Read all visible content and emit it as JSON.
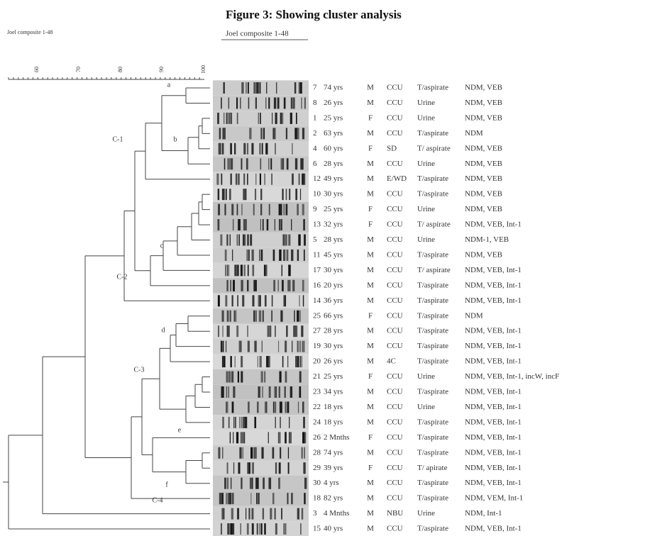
{
  "title": "Figure 3: Showing cluster analysis",
  "left_label": "Joel composite 1-48",
  "composite_label": "Joel composite 1-48",
  "scale": {
    "ticks": [
      "60",
      "70",
      "80",
      "90",
      "100"
    ]
  },
  "clusters": [
    "a",
    "b",
    "c",
    "d",
    "e",
    "f",
    "C-1",
    "C-2",
    "C-3",
    "C-4"
  ],
  "rows": [
    {
      "id": "7",
      "age": "74 yrs",
      "sex": "M",
      "ward": "CCU",
      "sample": "T/aspirate",
      "genes": "NDM, VEB"
    },
    {
      "id": "8",
      "age": "26 yrs",
      "sex": "M",
      "ward": "CCU",
      "sample": "Urine",
      "genes": "NDM, VEB"
    },
    {
      "id": "1",
      "age": "25 yrs",
      "sex": "F",
      "ward": "CCU",
      "sample": "Urine",
      "genes": "NDM, VEB"
    },
    {
      "id": "2",
      "age": "63 yrs",
      "sex": "M",
      "ward": "CCU",
      "sample": "T/aspirate",
      "genes": "NDM"
    },
    {
      "id": "4",
      "age": "60 yrs",
      "sex": "F",
      "ward": "SD",
      "sample": "T/ aspirate",
      "genes": "NDM, VEB"
    },
    {
      "id": "6",
      "age": "28 yrs",
      "sex": "M",
      "ward": "CCU",
      "sample": "Urine",
      "genes": "NDM, VEB"
    },
    {
      "id": "12",
      "age": "49 yrs",
      "sex": "M",
      "ward": "E/WD",
      "sample": "T/aspirate",
      "genes": "NDM, VEB"
    },
    {
      "id": "10",
      "age": "30 yrs",
      "sex": "M",
      "ward": "CCU",
      "sample": "T/aspirate",
      "genes": "NDM, VEB"
    },
    {
      "id": "9",
      "age": "25 yrs",
      "sex": "F",
      "ward": "CCU",
      "sample": "Urine",
      "genes": "NDM, VEB"
    },
    {
      "id": "13",
      "age": "32 yrs",
      "sex": "F",
      "ward": "CCU",
      "sample": "T/ aspirate",
      "genes": "NDM, VEB, Int-1"
    },
    {
      "id": "5",
      "age": "28 yrs",
      "sex": "M",
      "ward": "CCU",
      "sample": "Urine",
      "genes": "NDM-1, VEB"
    },
    {
      "id": "11",
      "age": "45 yrs",
      "sex": "M",
      "ward": "CCU",
      "sample": "T/aspirate",
      "genes": "NDM, VEB"
    },
    {
      "id": "17",
      "age": "30 yrs",
      "sex": "M",
      "ward": "CCU",
      "sample": "T/ aspirate",
      "genes": "NDM, VEB, Int-1"
    },
    {
      "id": "16",
      "age": "20 yrs",
      "sex": "M",
      "ward": "CCU",
      "sample": "T/aspirate",
      "genes": "NDM, VEB, Int-1"
    },
    {
      "id": "14",
      "age": "36 yrs",
      "sex": "M",
      "ward": "CCU",
      "sample": "T/aspirate",
      "genes": "NDM, VEB, Int-1"
    },
    {
      "id": "25",
      "age": "66 yrs",
      "sex": "F",
      "ward": "CCU",
      "sample": "T/aspirate",
      "genes": "NDM"
    },
    {
      "id": "27",
      "age": "28 yrs",
      "sex": "M",
      "ward": "CCU",
      "sample": "T/aspirate",
      "genes": "NDM, VEB, Int-1"
    },
    {
      "id": "19",
      "age": "30 yrs",
      "sex": "M",
      "ward": "CCU",
      "sample": "T/aspirate",
      "genes": "NDM, VEB, Int-1"
    },
    {
      "id": "20",
      "age": "26 yrs",
      "sex": "M",
      "ward": "4C",
      "sample": "T/aspirate",
      "genes": "NDM, VEB, Int-1"
    },
    {
      "id": "21",
      "age": "25 yrs",
      "sex": "F",
      "ward": "CCU",
      "sample": "Urine",
      "genes": "NDM, VEB, Int-1, incW, incF"
    },
    {
      "id": "23",
      "age": "34 yrs",
      "sex": "M",
      "ward": "CCU",
      "sample": "T/aspirate",
      "genes": "NDM, VEB, Int-1"
    },
    {
      "id": "22",
      "age": "18 yrs",
      "sex": "M",
      "ward": "CCU",
      "sample": "Urine",
      "genes": "NDM, VEB, Int-1"
    },
    {
      "id": "24",
      "age": "18 yrs",
      "sex": "M",
      "ward": "CCU",
      "sample": "T/aspirate",
      "genes": "NDM, VEB, Int-1"
    },
    {
      "id": "26",
      "age": "2 Mnths",
      "sex": "F",
      "ward": "CCU",
      "sample": "T/aspirate",
      "genes": "NDM, VEB, Int-1"
    },
    {
      "id": "28",
      "age": "74 yrs",
      "sex": "M",
      "ward": "CCU",
      "sample": "T/aspirate",
      "genes": "NDM, VEB, Int-1"
    },
    {
      "id": "29",
      "age": "39 yrs",
      "sex": "F",
      "ward": "CCU",
      "sample": "T/ apirate",
      "genes": "NDM, VEB, Int-1"
    },
    {
      "id": "30",
      "age": "4 yrs",
      "sex": "M",
      "ward": "CCU",
      "sample": "T/aspirate",
      "genes": "NDM, VEB, Int-1"
    },
    {
      "id": "18",
      "age": "82 yrs",
      "sex": "M",
      "ward": "CCU",
      "sample": "T/aspirate",
      "genes": "NDM, VEM, Int-1"
    },
    {
      "id": "3",
      "age": "4 Mnths",
      "sex": "M",
      "ward": "NBU",
      "sample": "Urine",
      "genes": "NDM, Int-1"
    },
    {
      "id": "15",
      "age": "40 yrs",
      "sex": "M",
      "ward": "CCU",
      "sample": "T/aspirate",
      "genes": "NDM, VEB, Int-1"
    }
  ]
}
